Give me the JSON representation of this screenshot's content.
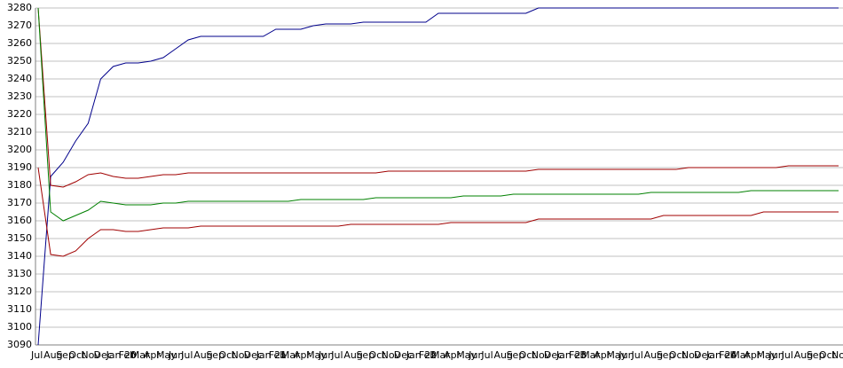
{
  "chart_data": {
    "type": "line",
    "categories": [
      "Jul",
      "Aug",
      "Sep",
      "Oct",
      "Nov",
      "Dec",
      "Jan 20",
      "Feb",
      "Mar",
      "Apr",
      "May",
      "Jun",
      "Jul",
      "Aug",
      "Sep",
      "Oct",
      "Nov",
      "Dec",
      "Jan 21",
      "Feb",
      "Mar",
      "Apr",
      "May",
      "Jun",
      "Jul",
      "Aug",
      "Sep",
      "Oct",
      "Nov",
      "Dec",
      "Jan 22",
      "Feb",
      "Mar",
      "Apr",
      "May",
      "Jun",
      "Jul",
      "Aug",
      "Sep",
      "Oct",
      "Nov",
      "Dec",
      "Jan 23",
      "Feb",
      "Mar",
      "Apr",
      "May",
      "Jun",
      "Jul",
      "Aug",
      "Sep",
      "Oct",
      "Nov",
      "Dec",
      "Jan 24",
      "Feb",
      "Mar",
      "Apr",
      "May",
      "Jun",
      "Jul",
      "Aug",
      "Sep",
      "Oct",
      "Nov"
    ],
    "series": [
      {
        "color": "#00008b",
        "values": [
          3090,
          3185,
          3193,
          3205,
          3215,
          3240,
          3247,
          3249,
          3249,
          3250,
          3252,
          3257,
          3262,
          3264,
          3264,
          3264,
          3264,
          3264,
          3264,
          3268,
          3268,
          3268,
          3270,
          3271,
          3271,
          3271,
          3272,
          3272,
          3272,
          3272,
          3272,
          3272,
          3277,
          3277,
          3277,
          3277,
          3277,
          3277,
          3277,
          3277,
          3280,
          3280,
          3280,
          3280,
          3280,
          3280,
          3280,
          3280,
          3280,
          3280,
          3280,
          3280,
          3280,
          3280,
          3280,
          3280,
          3280,
          3280,
          3280,
          3280,
          3280,
          3280,
          3280,
          3280,
          3280
        ]
      },
      {
        "color": "#a00000",
        "values": [
          3280,
          3180,
          3179,
          3182,
          3186,
          3187,
          3185,
          3184,
          3184,
          3185,
          3186,
          3186,
          3187,
          3187,
          3187,
          3187,
          3187,
          3187,
          3187,
          3187,
          3187,
          3187,
          3187,
          3187,
          3187,
          3187,
          3187,
          3187,
          3188,
          3188,
          3188,
          3188,
          3188,
          3188,
          3188,
          3188,
          3188,
          3188,
          3188,
          3188,
          3189,
          3189,
          3189,
          3189,
          3189,
          3189,
          3189,
          3189,
          3189,
          3189,
          3189,
          3189,
          3190,
          3190,
          3190,
          3190,
          3190,
          3190,
          3190,
          3190,
          3191,
          3191,
          3191,
          3191,
          3191
        ]
      },
      {
        "color": "#008000",
        "values": [
          3280,
          3165,
          3160,
          3163,
          3166,
          3171,
          3170,
          3169,
          3169,
          3169,
          3170,
          3170,
          3171,
          3171,
          3171,
          3171,
          3171,
          3171,
          3171,
          3171,
          3171,
          3172,
          3172,
          3172,
          3172,
          3172,
          3172,
          3173,
          3173,
          3173,
          3173,
          3173,
          3173,
          3173,
          3174,
          3174,
          3174,
          3174,
          3175,
          3175,
          3175,
          3175,
          3175,
          3175,
          3175,
          3175,
          3175,
          3175,
          3175,
          3176,
          3176,
          3176,
          3176,
          3176,
          3176,
          3176,
          3176,
          3177,
          3177,
          3177,
          3177,
          3177,
          3177,
          3177,
          3177
        ]
      },
      {
        "color": "#a00000",
        "values": [
          3190,
          3141,
          3140,
          3143,
          3150,
          3155,
          3155,
          3154,
          3154,
          3155,
          3156,
          3156,
          3156,
          3157,
          3157,
          3157,
          3157,
          3157,
          3157,
          3157,
          3157,
          3157,
          3157,
          3157,
          3157,
          3158,
          3158,
          3158,
          3158,
          3158,
          3158,
          3158,
          3158,
          3159,
          3159,
          3159,
          3159,
          3159,
          3159,
          3159,
          3161,
          3161,
          3161,
          3161,
          3161,
          3161,
          3161,
          3161,
          3161,
          3161,
          3163,
          3163,
          3163,
          3163,
          3163,
          3163,
          3163,
          3163,
          3165,
          3165,
          3165,
          3165,
          3165,
          3165,
          3165
        ]
      }
    ],
    "ylim": [
      3090,
      3280
    ],
    "yticks": [
      3090,
      3100,
      3110,
      3120,
      3130,
      3140,
      3150,
      3160,
      3170,
      3180,
      3190,
      3200,
      3210,
      3220,
      3230,
      3240,
      3250,
      3260,
      3270,
      3280
    ],
    "grid": true
  }
}
